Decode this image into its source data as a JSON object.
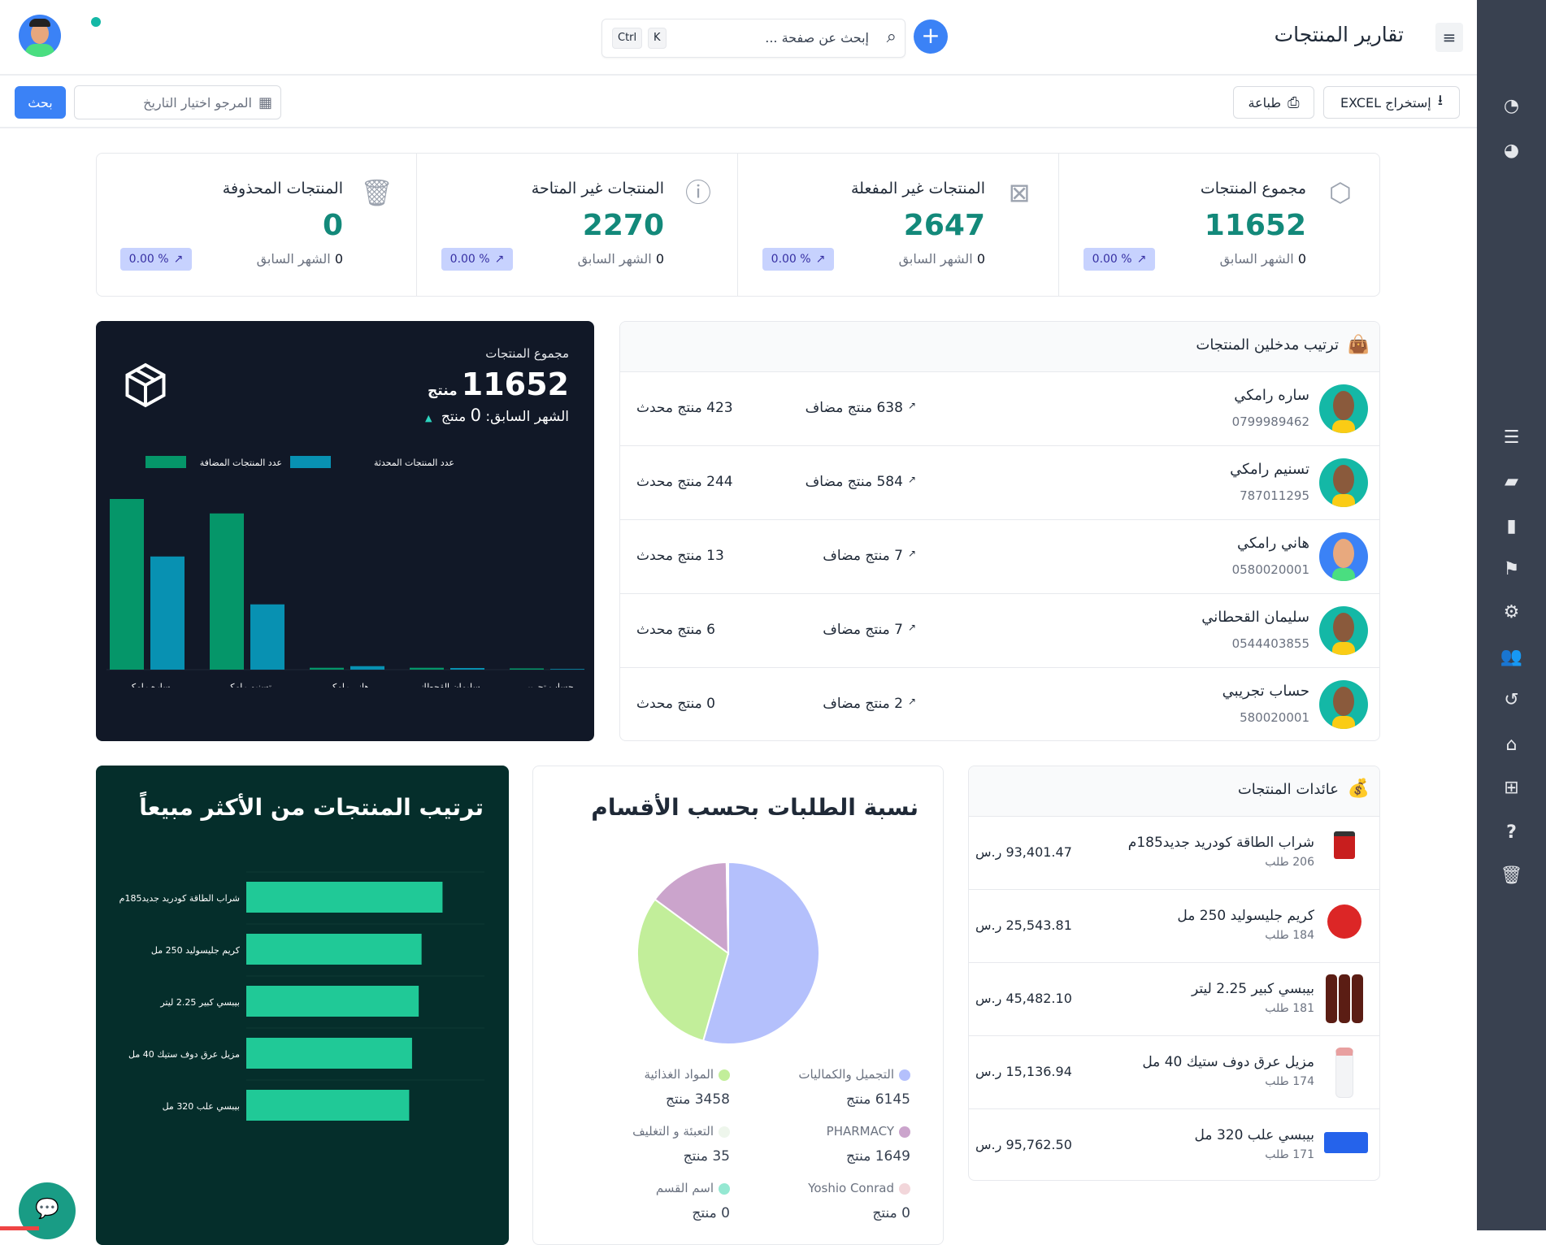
{
  "header": {
    "title": "تقارير المنتجات",
    "search_placeholder": "إبحث عن صفحة ...",
    "kbd_ctrl": "Ctrl",
    "kbd_k": "K"
  },
  "toolbar": {
    "excel": "إستخراج EXCEL",
    "print": "طباعة",
    "date_placeholder": "المرجو اختيار التاريخ",
    "search": "بحث"
  },
  "stats": [
    {
      "title": "مجموع المنتجات",
      "value": "11652",
      "prev": "0",
      "prev_label": "الشهر السابق",
      "badge": "0.00 %",
      "icon": "box-icon"
    },
    {
      "title": "المنتجات غير المفعلة",
      "value": "2647",
      "prev": "0",
      "prev_label": "الشهر السابق",
      "badge": "0.00 %",
      "icon": "x-square-icon"
    },
    {
      "title": "المنتجات غير المتاحة",
      "value": "2270",
      "prev": "0",
      "prev_label": "الشهر السابق",
      "badge": "0.00 %",
      "icon": "alert-octagon-icon"
    },
    {
      "title": "المنتجات المحذوفة",
      "value": "0",
      "prev": "0",
      "prev_label": "الشهر السابق",
      "badge": "0.00 %",
      "icon": "trash-icon"
    }
  ],
  "summary": {
    "title": "مجموع المنتجات",
    "value": "11652",
    "unit": "منتج",
    "prev_label": "الشهر السابق:",
    "prev_value": "0",
    "prev_unit": "منتج"
  },
  "entrants_chart": {
    "type": "bar",
    "categories": [
      "ساره رامكي",
      "تسنيم رامكي",
      "هاني رامكي",
      "سليمان القحطاني",
      "حساب تجريبي"
    ],
    "series": [
      {
        "name": "عدد المنتجات المضافة",
        "values": [
          638,
          584,
          7,
          7,
          2
        ],
        "color": "#059669"
      },
      {
        "name": "عدد المنتجات المحدثة",
        "values": [
          423,
          244,
          13,
          6,
          0
        ],
        "color": "#0891b2"
      }
    ],
    "ylim": [
      0,
      638
    ]
  },
  "entrants": {
    "title": "ترتيب مدخلين المنتجات",
    "items": [
      {
        "name": "ساره رامكي",
        "phone": "0799989462",
        "added": "638 منتج مضاف",
        "updated": "423 منتج محدث"
      },
      {
        "name": "تسنيم رامكي",
        "phone": "787011295",
        "added": "584 منتج مضاف",
        "updated": "244 منتج محدث"
      },
      {
        "name": "هاني رامكي",
        "phone": "0580020001",
        "added": "7 منتج مضاف",
        "updated": "13 منتج محدث"
      },
      {
        "name": "سليمان القحطاني",
        "phone": "0544403855",
        "added": "7 منتج مضاف",
        "updated": "6 منتج محدث"
      },
      {
        "name": "حساب تجريبي",
        "phone": "580020001",
        "added": "2 منتج مضاف",
        "updated": "0 منتج محدث"
      }
    ]
  },
  "chart_data": [
    {
      "type": "bar",
      "orientation": "horizontal",
      "title": "ترتيب المنتجات من الأكثر مبيعاً",
      "categories": [
        "شراب الطاقة كودريد جديد185م",
        "كريم جليسوليد 250 مل",
        "بيبسي كبير 2.25 ليتر",
        "مزيل عرق دوف ستيك 40 مل",
        "بيبسي علب 320 مل"
      ],
      "values": [
        206,
        184,
        181,
        174,
        171
      ],
      "xlim": [
        0,
        250
      ],
      "xticks": [
        "0",
        "50",
        "100",
        "150",
        "200",
        "250"
      ],
      "color": "#20c997"
    },
    {
      "type": "pie",
      "title": "نسبة الطلبات بحسب الأقسام",
      "slices": [
        {
          "label": "التجميل والكماليات",
          "value": 6145,
          "text": "6145 منتج",
          "color": "#b4c0fc"
        },
        {
          "label": "المواد الغذائية",
          "value": 3458,
          "text": "3458 منتج",
          "color": "#c2ee9a"
        },
        {
          "label": "PHARMACY",
          "value": 1649,
          "text": "1649 منتج",
          "color": "#cba4cc"
        },
        {
          "label": "التعبئة و التغليف",
          "value": 35,
          "text": "35 منتج",
          "color": "#eef6ec"
        },
        {
          "label": "Yoshio Conrad",
          "value": 0,
          "text": "0 منتج",
          "color": "#f2d6da"
        },
        {
          "label": "اسم القسم",
          "value": 0,
          "text": "0 منتج",
          "color": "#95e8d2"
        }
      ]
    }
  ],
  "revenue": {
    "title": "عائدات المنتجات",
    "items": [
      {
        "name": "شراب الطاقة كودريد جديد185م",
        "orders": "206 طلب",
        "amount": "93,401.47 ر.س",
        "img": "can"
      },
      {
        "name": "كريم جليسوليد 250 مل",
        "orders": "184 طلب",
        "amount": "25,543.81 ر.س",
        "img": "jar"
      },
      {
        "name": "بيبسي كبير 2.25 ليتر",
        "orders": "181 طلب",
        "amount": "45,482.10 ر.س",
        "img": "bottles"
      },
      {
        "name": "مزيل عرق دوف ستيك 40 مل",
        "orders": "174 طلب",
        "amount": "15,136.94 ر.س",
        "img": "stick"
      },
      {
        "name": "بيبسي علب 320 مل",
        "orders": "171 طلب",
        "amount": "95,762.50 ر.س",
        "img": "pack"
      }
    ]
  },
  "colors": {
    "accent": "#3b82f6",
    "green": "#13897a",
    "sidebar": "#394150",
    "dark_card": "#111827",
    "green_card": "#052e2b"
  }
}
